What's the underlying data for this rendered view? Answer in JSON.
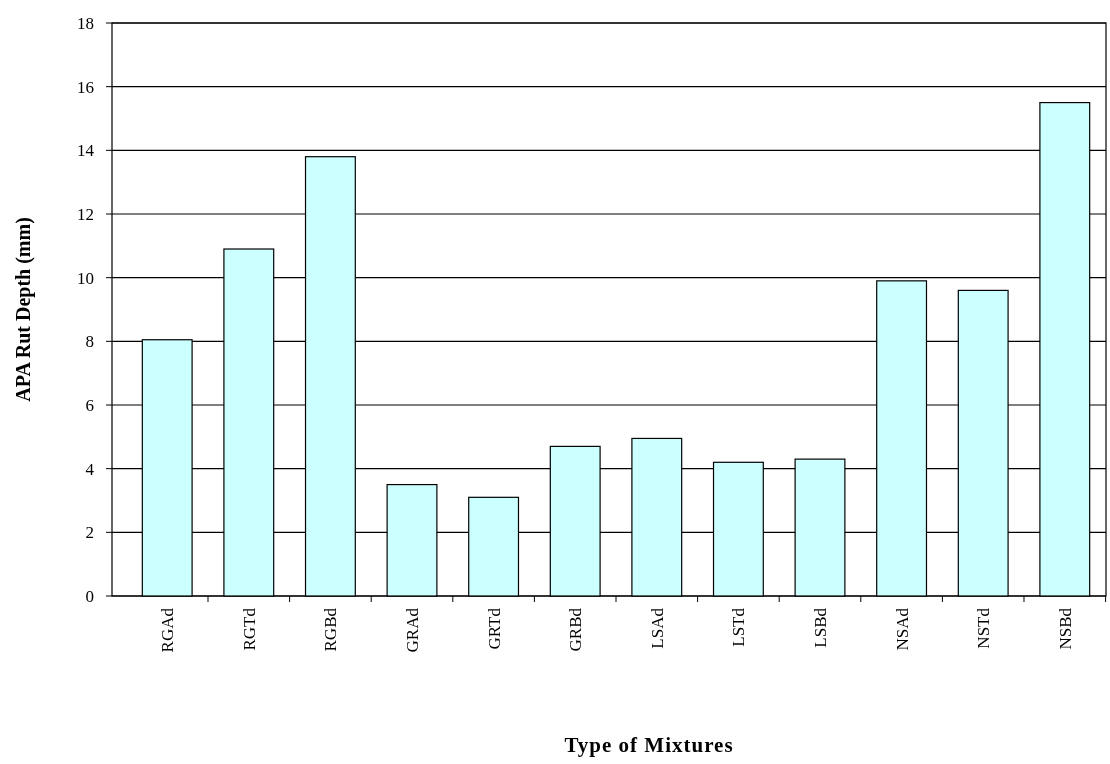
{
  "chart_data": {
    "type": "bar",
    "xlabel": "Type of Mixtures",
    "ylabel": "APA Rut Depth (mm)",
    "categories": [
      "RGAd",
      "RGTd",
      "RGBd",
      "GRAd",
      "GRTd",
      "GRBd",
      "LSAd",
      "LSTd",
      "LSBd",
      "NSAd",
      "NSTd",
      "NSBd"
    ],
    "values": [
      8.05,
      10.9,
      13.8,
      3.5,
      3.1,
      4.7,
      4.95,
      4.2,
      4.3,
      9.9,
      9.6,
      15.5
    ],
    "color": "#ccffff",
    "ylim": [
      0,
      18
    ],
    "yticks": [
      0,
      2,
      4,
      6,
      8,
      10,
      12,
      14,
      16,
      18
    ],
    "grid": "y"
  }
}
